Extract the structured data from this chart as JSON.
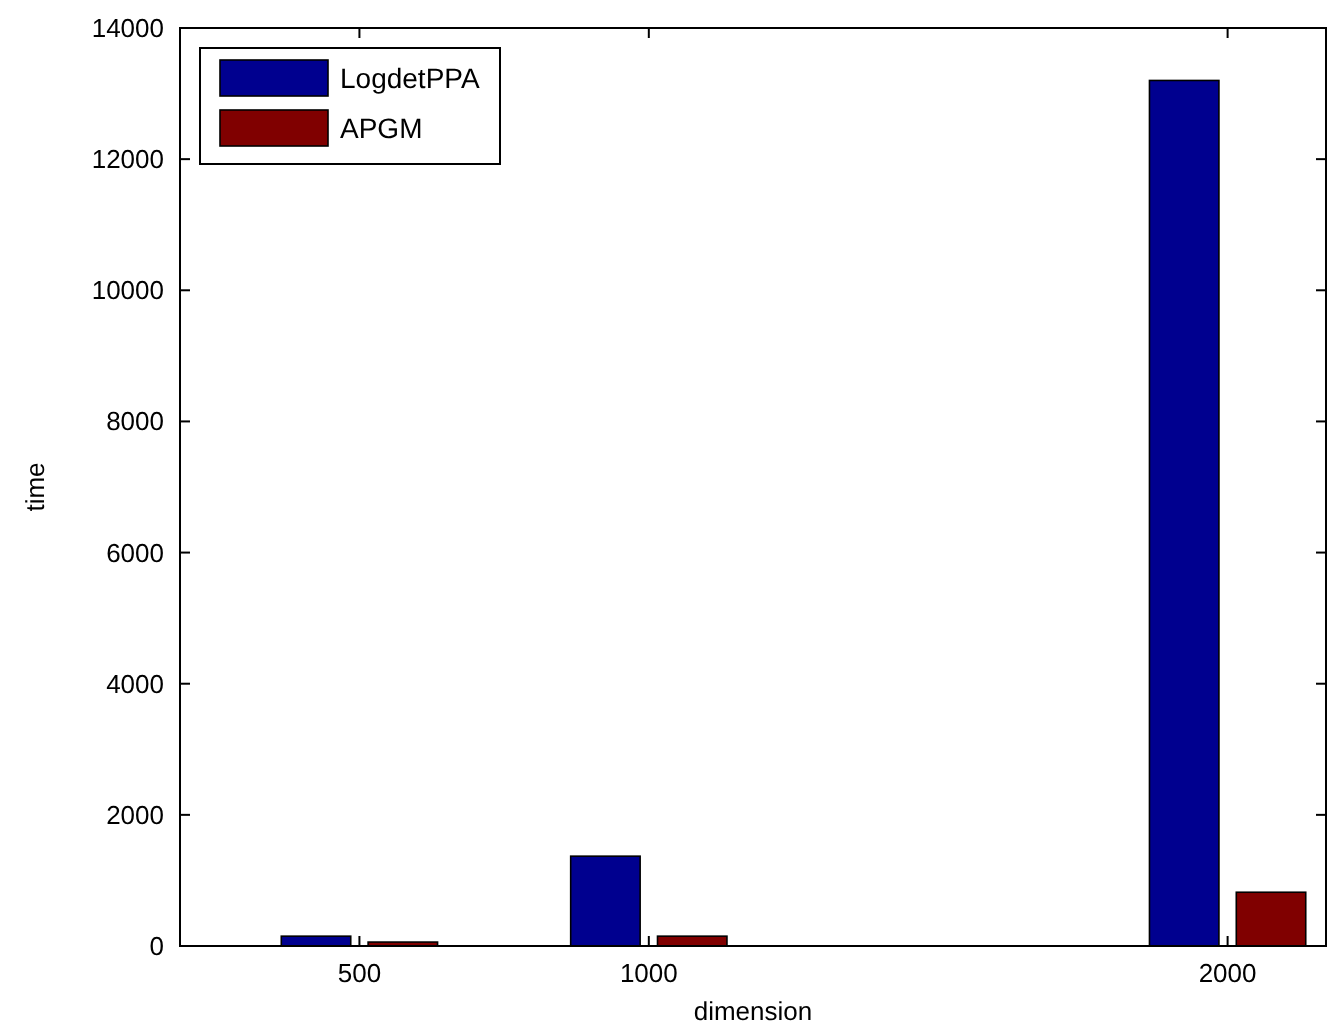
{
  "chart_data": {
    "type": "bar",
    "xlabel": "dimension",
    "ylabel": "time",
    "x": [
      500,
      1000,
      2000
    ],
    "series": [
      {
        "name": "LogdetPPA",
        "color": "#00008f",
        "values": [
          150,
          1370,
          13200
        ]
      },
      {
        "name": "APGM",
        "color": "#800000",
        "values": [
          60,
          150,
          820
        ]
      }
    ],
    "xlim": [
      190,
      2170
    ],
    "xticks": [
      500,
      1000,
      2000
    ],
    "ylim": [
      0,
      14000
    ],
    "yticks": [
      0,
      2000,
      4000,
      6000,
      8000,
      10000,
      12000,
      14000
    ],
    "grid": false,
    "legend": "top left"
  }
}
